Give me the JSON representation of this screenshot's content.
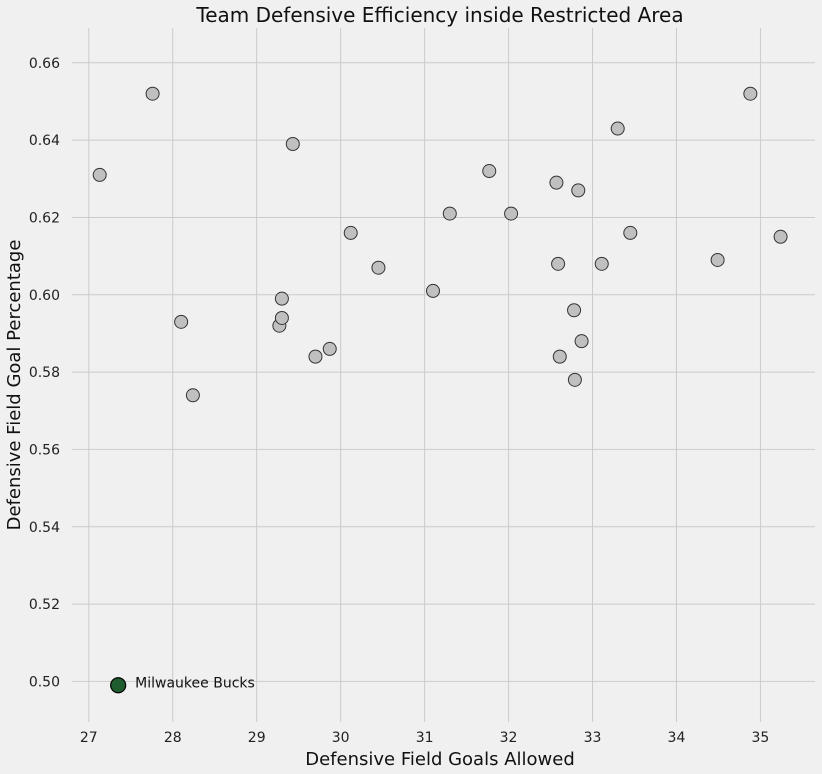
{
  "chart_data": {
    "type": "scatter",
    "title": "Team Defensive Efficiency inside Restricted Area",
    "xlabel": "Defensive Field Goals Allowed",
    "ylabel": "Defensive Field Goal Percentage",
    "xlim": [
      26.8,
      35.65
    ],
    "ylim": [
      0.4895,
      0.669
    ],
    "xticks": [
      "27",
      "28",
      "29",
      "30",
      "31",
      "32",
      "33",
      "34",
      "35"
    ],
    "yticks": [
      "0.50",
      "0.52",
      "0.54",
      "0.56",
      "0.58",
      "0.60",
      "0.62",
      "0.64",
      "0.66"
    ],
    "grid": true,
    "points": [
      {
        "x": 27.13,
        "y": 0.631
      },
      {
        "x": 27.76,
        "y": 0.652
      },
      {
        "x": 28.1,
        "y": 0.593
      },
      {
        "x": 28.24,
        "y": 0.574
      },
      {
        "x": 29.27,
        "y": 0.592
      },
      {
        "x": 29.3,
        "y": 0.594
      },
      {
        "x": 29.3,
        "y": 0.599
      },
      {
        "x": 29.43,
        "y": 0.639
      },
      {
        "x": 29.7,
        "y": 0.584
      },
      {
        "x": 29.87,
        "y": 0.586
      },
      {
        "x": 30.12,
        "y": 0.616
      },
      {
        "x": 30.45,
        "y": 0.607
      },
      {
        "x": 31.1,
        "y": 0.601
      },
      {
        "x": 31.3,
        "y": 0.621
      },
      {
        "x": 31.77,
        "y": 0.632
      },
      {
        "x": 32.03,
        "y": 0.621
      },
      {
        "x": 32.57,
        "y": 0.629
      },
      {
        "x": 32.59,
        "y": 0.608
      },
      {
        "x": 32.61,
        "y": 0.584
      },
      {
        "x": 32.78,
        "y": 0.596
      },
      {
        "x": 32.79,
        "y": 0.578
      },
      {
        "x": 32.83,
        "y": 0.627
      },
      {
        "x": 32.87,
        "y": 0.588
      },
      {
        "x": 33.11,
        "y": 0.608
      },
      {
        "x": 33.3,
        "y": 0.643
      },
      {
        "x": 33.45,
        "y": 0.616
      },
      {
        "x": 34.49,
        "y": 0.609
      },
      {
        "x": 34.88,
        "y": 0.652
      },
      {
        "x": 35.24,
        "y": 0.615
      }
    ],
    "highlight": {
      "x": 27.35,
      "y": 0.499,
      "label": "Milwaukee Bucks",
      "color": "#1f5c2e"
    },
    "point_color": "#c0c0c0",
    "edge_color": "#333333",
    "background": "#f0f0f0"
  }
}
